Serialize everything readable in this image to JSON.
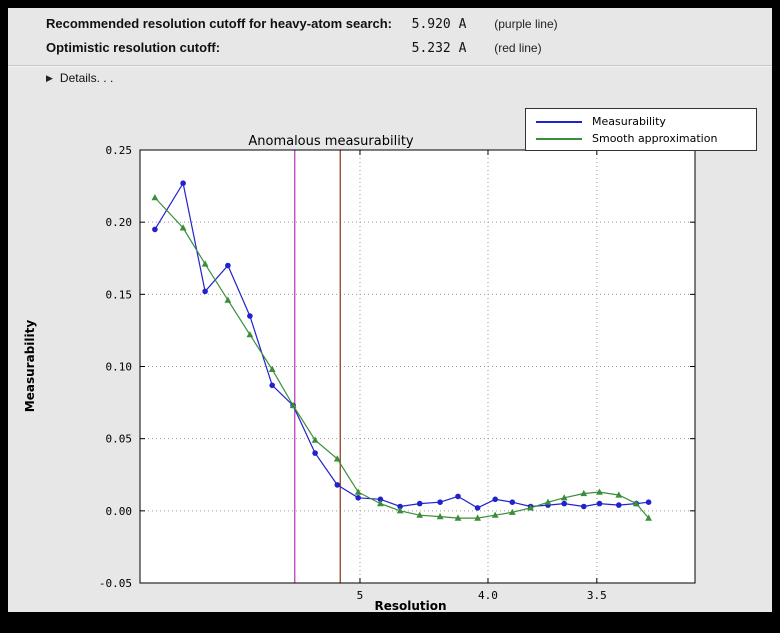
{
  "header": {
    "rows": [
      {
        "label": "Recommended resolution cutoff for heavy-atom search:",
        "value": "5.920 A",
        "note": "(purple line)"
      },
      {
        "label": "Optimistic resolution cutoff:",
        "value": "5.232 A",
        "note": "(red line)"
      }
    ],
    "details_icon": "▶",
    "details_label": "Details. . ."
  },
  "colors": {
    "panel_bg": "#e7e7e7",
    "plot_bg": "#ffffff",
    "frame": "#000000",
    "grid": "#999999",
    "measurability": "#2222cc",
    "smooth": "#3a8e3a",
    "purple_line": "#bf40bf",
    "red_line": "#993d26"
  },
  "chart_data": {
    "type": "line",
    "title": "Anomalous measurability",
    "xlabel": "Resolution",
    "ylabel": "Measurability",
    "x_axis": {
      "scale": "inverse-square",
      "xlim_res": [
        27.4,
        3.18
      ],
      "ticks": [
        {
          "value": 5.0,
          "label": "5"
        },
        {
          "value": 4.0,
          "label": "4.0"
        },
        {
          "value": 3.5,
          "label": "3.5"
        }
      ]
    },
    "y_axis": {
      "ylim": [
        -0.05,
        0.25
      ],
      "ticks": [
        {
          "value": 0.25,
          "label": "0.25"
        },
        {
          "value": 0.2,
          "label": "0.20"
        },
        {
          "value": 0.15,
          "label": "0.15"
        },
        {
          "value": 0.1,
          "label": "0.10"
        },
        {
          "value": 0.05,
          "label": "0.05"
        },
        {
          "value": 0.0,
          "label": "0.00"
        },
        {
          "value": -0.05,
          "label": "-0.05"
        }
      ]
    },
    "grid": true,
    "legend_position": "top-right-outside",
    "resolution_bins": [
      15.9,
      10.6,
      8.85,
      7.72,
      6.96,
      6.38,
      5.95,
      5.58,
      5.27,
      5.02,
      4.79,
      4.61,
      4.45,
      4.3,
      4.18,
      4.06,
      3.96,
      3.87,
      3.78,
      3.7,
      3.63,
      3.55,
      3.49,
      3.42,
      3.36,
      3.32
    ],
    "series": [
      {
        "name": "Measurability",
        "color_key": "measurability",
        "marker": "circle",
        "values": [
          0.195,
          0.227,
          0.152,
          0.17,
          0.135,
          0.087,
          0.073,
          0.04,
          0.018,
          0.009,
          0.008,
          0.003,
          0.005,
          0.006,
          0.01,
          0.002,
          0.008,
          0.006,
          0.003,
          0.004,
          0.005,
          0.003,
          0.005,
          0.004,
          0.005,
          0.006
        ]
      },
      {
        "name": "Smooth approximation",
        "color_key": "smooth",
        "marker": "triangle",
        "values": [
          0.217,
          0.196,
          0.171,
          0.146,
          0.122,
          0.098,
          0.073,
          0.049,
          0.036,
          0.013,
          0.005,
          0.0,
          -0.003,
          -0.004,
          -0.005,
          -0.005,
          -0.003,
          -0.001,
          0.002,
          0.006,
          0.009,
          0.012,
          0.013,
          0.011,
          0.005,
          -0.005
        ]
      }
    ],
    "vlines": [
      {
        "resolution": 5.92,
        "color_key": "purple_line",
        "name": "purple-cutoff-line"
      },
      {
        "resolution": 5.232,
        "color_key": "red_line",
        "name": "red-cutoff-line"
      }
    ]
  }
}
